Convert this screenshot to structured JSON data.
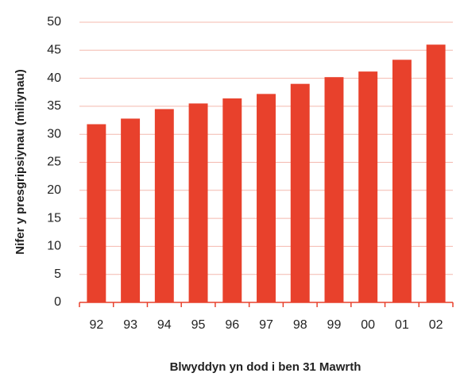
{
  "chart_data": {
    "type": "bar",
    "categories": [
      "92",
      "93",
      "94",
      "95",
      "96",
      "97",
      "98",
      "99",
      "00",
      "01",
      "02"
    ],
    "values": [
      31.8,
      32.8,
      34.5,
      35.5,
      36.4,
      37.2,
      39.0,
      40.2,
      41.2,
      43.3,
      46.0
    ],
    "color": "#e8412c",
    "ylim": [
      0,
      50
    ],
    "yticks": [
      0,
      5,
      10,
      15,
      20,
      25,
      30,
      35,
      40,
      45,
      50
    ],
    "grid": true,
    "ylabel": "Nifer y presgripsiynau (miliynau)",
    "xlabel": "Blwyddyn yn dod i ben 31 Mawrth"
  }
}
